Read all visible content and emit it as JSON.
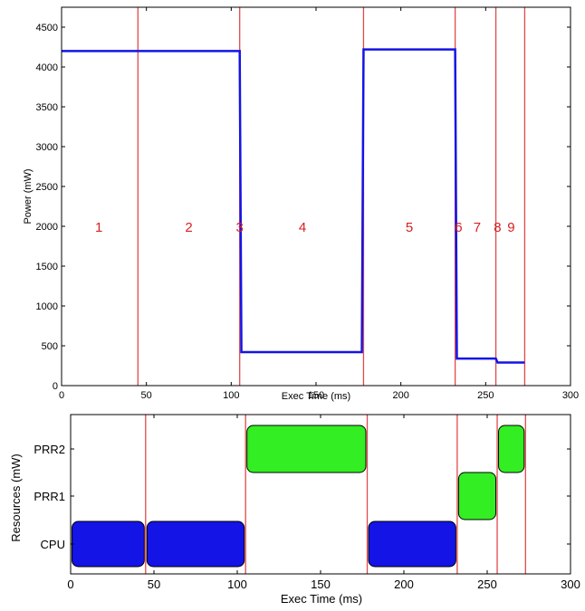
{
  "colors": {
    "power_line": "#1414e6",
    "phase_line": "#e04a4a",
    "phase_label": "#d62020",
    "cpu_task": "#1414e6",
    "prr_task": "#33ee22",
    "axis": "#000000"
  },
  "chart_data": [
    {
      "type": "line",
      "xlabel": "Exec Time (ms)",
      "ylabel": "Power (mW)",
      "xlim": [
        0,
        300
      ],
      "ylim": [
        0,
        4750
      ],
      "xticks": [
        "0",
        "50",
        "100",
        "150",
        "200",
        "250",
        "300"
      ],
      "yticks": [
        "0",
        "500",
        "1000",
        "1500",
        "2000",
        "2500",
        "3000",
        "3500",
        "4000",
        "4500"
      ],
      "grid": false,
      "series": [
        {
          "x": [
            0,
            105,
            106,
            177,
            178,
            232,
            233,
            256,
            257,
            273
          ],
          "y": [
            4200,
            4200,
            420,
            420,
            4220,
            4220,
            340,
            340,
            290,
            290
          ]
        }
      ],
      "phase_boundaries": [
        45,
        105,
        178,
        232,
        256,
        273
      ],
      "phase_labels": [
        {
          "text": "1",
          "x": 22,
          "y": 2000
        },
        {
          "text": "2",
          "x": 75,
          "y": 2000
        },
        {
          "text": "3",
          "x": 105,
          "y": 2000
        },
        {
          "text": "4",
          "x": 142,
          "y": 2000
        },
        {
          "text": "5",
          "x": 205,
          "y": 2000
        },
        {
          "text": "6",
          "x": 234,
          "y": 2000
        },
        {
          "text": "7",
          "x": 245,
          "y": 2000
        },
        {
          "text": "8",
          "x": 257,
          "y": 2000
        },
        {
          "text": "9",
          "x": 265,
          "y": 2000
        }
      ]
    },
    {
      "type": "gantt",
      "xlabel": "Exec Time (ms)",
      "ylabel": "Resources (mW)",
      "xlim": [
        0,
        300
      ],
      "xticks": [
        "0",
        "50",
        "100",
        "150",
        "200",
        "250",
        "300"
      ],
      "resources": [
        "CPU",
        "PRR1",
        "PRR2"
      ],
      "phase_boundaries": [
        45,
        105,
        178,
        232,
        256,
        273
      ],
      "tasks": [
        {
          "resource": "CPU",
          "start": 0,
          "end": 45
        },
        {
          "resource": "CPU",
          "start": 45,
          "end": 105
        },
        {
          "resource": "PRR2",
          "start": 105,
          "end": 178
        },
        {
          "resource": "CPU",
          "start": 178,
          "end": 232
        },
        {
          "resource": "PRR1",
          "start": 232,
          "end": 256
        },
        {
          "resource": "PRR2",
          "start": 256,
          "end": 273
        }
      ]
    }
  ]
}
